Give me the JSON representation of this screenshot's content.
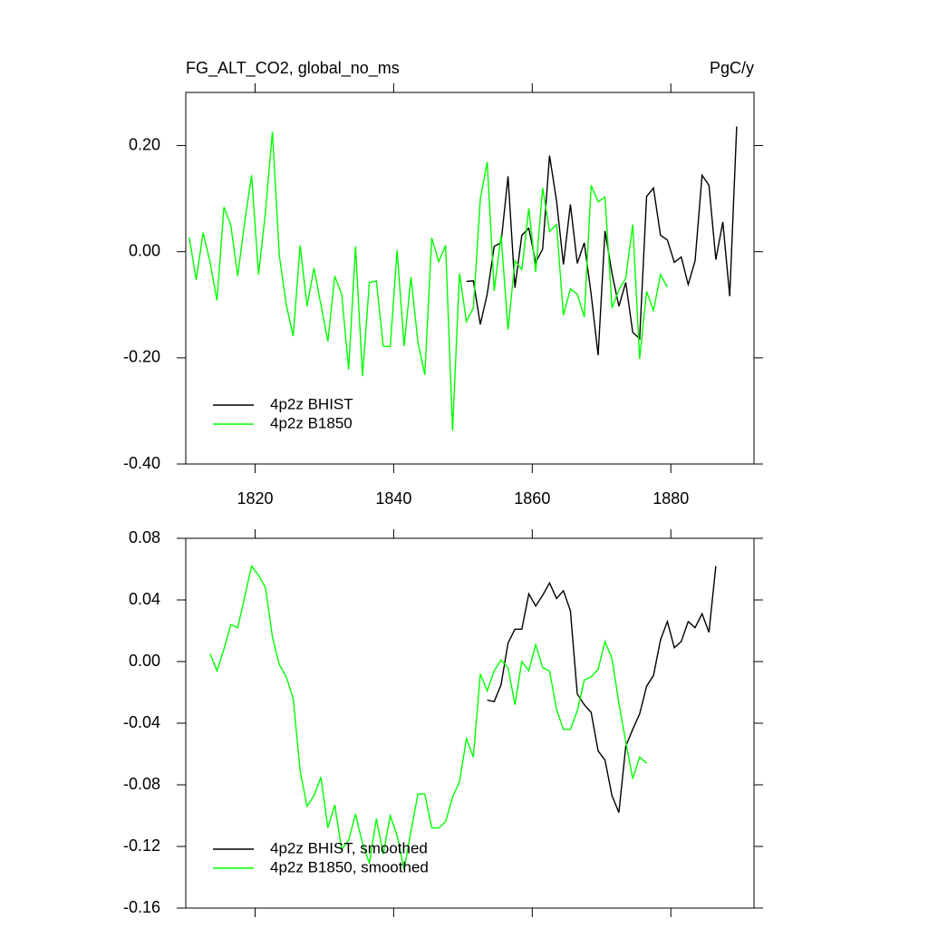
{
  "chart_data": [
    {
      "type": "line",
      "title": "FG_ALT_CO2, global_no_ms",
      "units": "PgC/y",
      "xlim": [
        1810,
        1892
      ],
      "xticks": [
        1820,
        1840,
        1860,
        1880
      ],
      "ylim": [
        -0.4,
        0.3
      ],
      "yticks": [
        {
          "value": -0.4,
          "label": "-0.40"
        },
        {
          "value": -0.2,
          "label": "-0.20"
        },
        {
          "value": 0,
          "label": "0.00"
        },
        {
          "value": 0.2,
          "label": "0.20"
        }
      ],
      "legend": "lower left",
      "series": [
        {
          "name": "4p2z BHIST",
          "color": "#000000",
          "x": [
            1850.5,
            1851.5,
            1852.5,
            1853.5,
            1854.5,
            1855.5,
            1856.5,
            1857.5,
            1858.5,
            1859.5,
            1860.5,
            1861.5,
            1862.5,
            1863.5,
            1864.5,
            1865.5,
            1866.5,
            1867.5,
            1868.5,
            1869.5,
            1870.5,
            1871.5,
            1872.5,
            1873.5,
            1874.5,
            1875.5,
            1876.5,
            1877.5,
            1878.5,
            1879.5,
            1880.5,
            1881.5,
            1882.5,
            1883.5,
            1884.5,
            1885.5,
            1886.5,
            1887.5,
            1888.5,
            1889.5
          ],
          "values": [
            -0.056,
            -0.055,
            -0.137,
            -0.08,
            0.01,
            0.017,
            0.142,
            -0.068,
            0.031,
            0.044,
            -0.02,
            0.005,
            0.181,
            0.096,
            -0.024,
            0.089,
            -0.022,
            0.017,
            -0.08,
            -0.195,
            0.039,
            -0.041,
            -0.103,
            -0.058,
            -0.152,
            -0.164,
            0.104,
            0.12,
            0.031,
            0.022,
            -0.02,
            -0.01,
            -0.062,
            -0.017,
            0.144,
            0.125,
            -0.015,
            0.056,
            -0.084,
            0.236
          ]
        },
        {
          "name": "4p2z B1850",
          "color": "#00ff00",
          "x": [
            1810.5,
            1811.5,
            1812.5,
            1813.5,
            1814.5,
            1815.5,
            1816.5,
            1817.5,
            1818.5,
            1819.5,
            1820.5,
            1821.5,
            1822.5,
            1823.5,
            1824.5,
            1825.5,
            1826.5,
            1827.5,
            1828.5,
            1829.5,
            1830.5,
            1831.5,
            1832.5,
            1833.5,
            1834.5,
            1835.5,
            1836.5,
            1837.5,
            1838.5,
            1839.5,
            1840.5,
            1841.5,
            1842.5,
            1843.5,
            1844.5,
            1845.5,
            1846.5,
            1847.5,
            1848.5,
            1849.5,
            1850.5,
            1851.5,
            1852.5,
            1853.5,
            1854.5,
            1855.5,
            1856.5,
            1857.5,
            1858.5,
            1859.5,
            1860.5,
            1861.5,
            1862.5,
            1863.5,
            1864.5,
            1865.5,
            1866.5,
            1867.5,
            1868.5,
            1869.5,
            1870.5,
            1871.5,
            1872.5,
            1873.5,
            1874.5,
            1875.5,
            1876.5,
            1877.5,
            1878.5,
            1879.5
          ],
          "values": [
            0.027,
            -0.053,
            0.036,
            -0.02,
            -0.092,
            0.084,
            0.05,
            -0.046,
            0.056,
            0.144,
            -0.043,
            0.074,
            0.226,
            -0.007,
            -0.1,
            -0.159,
            0.012,
            -0.103,
            -0.031,
            -0.1,
            -0.169,
            -0.046,
            -0.08,
            -0.222,
            0.01,
            -0.234,
            -0.058,
            -0.055,
            -0.178,
            -0.179,
            0.003,
            -0.178,
            -0.048,
            -0.171,
            -0.232,
            0.026,
            -0.019,
            0.012,
            -0.337,
            -0.041,
            -0.132,
            -0.106,
            0.099,
            0.169,
            -0.074,
            0.031,
            -0.147,
            -0.017,
            -0.034,
            0.082,
            -0.038,
            0.12,
            0.038,
            0.051,
            -0.12,
            -0.07,
            -0.08,
            -0.123,
            0.125,
            0.094,
            0.103,
            -0.106,
            -0.072,
            -0.05,
            0.051,
            -0.202,
            -0.075,
            -0.111,
            -0.043,
            -0.067
          ]
        }
      ]
    },
    {
      "type": "line",
      "xlim": [
        1810,
        1892
      ],
      "xticks": [
        1820,
        1840,
        1860,
        1880
      ],
      "ylim": [
        -0.16,
        0.08
      ],
      "yticks": [
        {
          "value": -0.16,
          "label": "-0.16"
        },
        {
          "value": -0.12,
          "label": "-0.12"
        },
        {
          "value": -0.08,
          "label": "-0.08"
        },
        {
          "value": -0.04,
          "label": "-0.04"
        },
        {
          "value": 0,
          "label": "0.00"
        },
        {
          "value": 0.04,
          "label": "0.04"
        },
        {
          "value": 0.08,
          "label": "0.08"
        }
      ],
      "legend": "lower left",
      "series": [
        {
          "name": "4p2z BHIST, smoothed",
          "color": "#000000",
          "x": [
            1853.5,
            1854.5,
            1855.5,
            1856.5,
            1857.5,
            1858.5,
            1859.5,
            1860.5,
            1861.5,
            1862.5,
            1863.5,
            1864.5,
            1865.5,
            1866.5,
            1867.5,
            1868.5,
            1869.5,
            1870.5,
            1871.5,
            1872.5,
            1873.5,
            1874.5,
            1875.5,
            1876.5,
            1877.5,
            1878.5,
            1879.5,
            1880.5,
            1881.5,
            1882.5,
            1883.5,
            1884.5,
            1885.5,
            1886.5
          ],
          "values": [
            -0.025,
            -0.026,
            -0.015,
            0.012,
            0.021,
            0.021,
            0.044,
            0.036,
            0.043,
            0.051,
            0.041,
            0.046,
            0.033,
            -0.021,
            -0.028,
            -0.033,
            -0.058,
            -0.064,
            -0.087,
            -0.098,
            -0.055,
            -0.044,
            -0.034,
            -0.016,
            -0.009,
            0.014,
            0.026,
            0.009,
            0.013,
            0.026,
            0.022,
            0.031,
            0.019,
            0.062
          ]
        },
        {
          "name": "4p2z B1850, smoothed",
          "color": "#00ff00",
          "x": [
            1813.5,
            1814.5,
            1815.5,
            1816.5,
            1817.5,
            1818.5,
            1819.5,
            1820.5,
            1821.5,
            1822.5,
            1823.5,
            1824.5,
            1825.5,
            1826.5,
            1827.5,
            1828.5,
            1829.5,
            1830.5,
            1831.5,
            1832.5,
            1833.5,
            1834.5,
            1835.5,
            1836.5,
            1837.5,
            1838.5,
            1839.5,
            1840.5,
            1841.5,
            1842.5,
            1843.5,
            1844.5,
            1845.5,
            1846.5,
            1847.5,
            1848.5,
            1849.5,
            1850.5,
            1851.5,
            1852.5,
            1853.5,
            1854.5,
            1855.5,
            1856.5,
            1857.5,
            1858.5,
            1859.5,
            1860.5,
            1861.5,
            1862.5,
            1863.5,
            1864.5,
            1865.5,
            1866.5,
            1867.5,
            1868.5,
            1869.5,
            1870.5,
            1871.5,
            1872.5,
            1873.5,
            1874.5,
            1875.5,
            1876.5
          ],
          "values": [
            0.005,
            -0.006,
            0.008,
            0.024,
            0.022,
            0.042,
            0.062,
            0.056,
            0.048,
            0.016,
            -0.002,
            -0.01,
            -0.024,
            -0.071,
            -0.094,
            -0.087,
            -0.075,
            -0.108,
            -0.093,
            -0.122,
            -0.116,
            -0.099,
            -0.118,
            -0.131,
            -0.102,
            -0.125,
            -0.1,
            -0.113,
            -0.135,
            -0.11,
            -0.086,
            -0.086,
            -0.108,
            -0.108,
            -0.104,
            -0.088,
            -0.078,
            -0.05,
            -0.062,
            -0.008,
            -0.019,
            -0.006,
            0.001,
            -0.004,
            -0.028,
            0,
            -0.006,
            0.011,
            -0.004,
            -0.006,
            -0.031,
            -0.044,
            -0.044,
            -0.032,
            -0.012,
            -0.01,
            -0.005,
            0.013,
            0.002,
            -0.027,
            -0.052,
            -0.076,
            -0.062,
            -0.066
          ]
        }
      ]
    }
  ]
}
